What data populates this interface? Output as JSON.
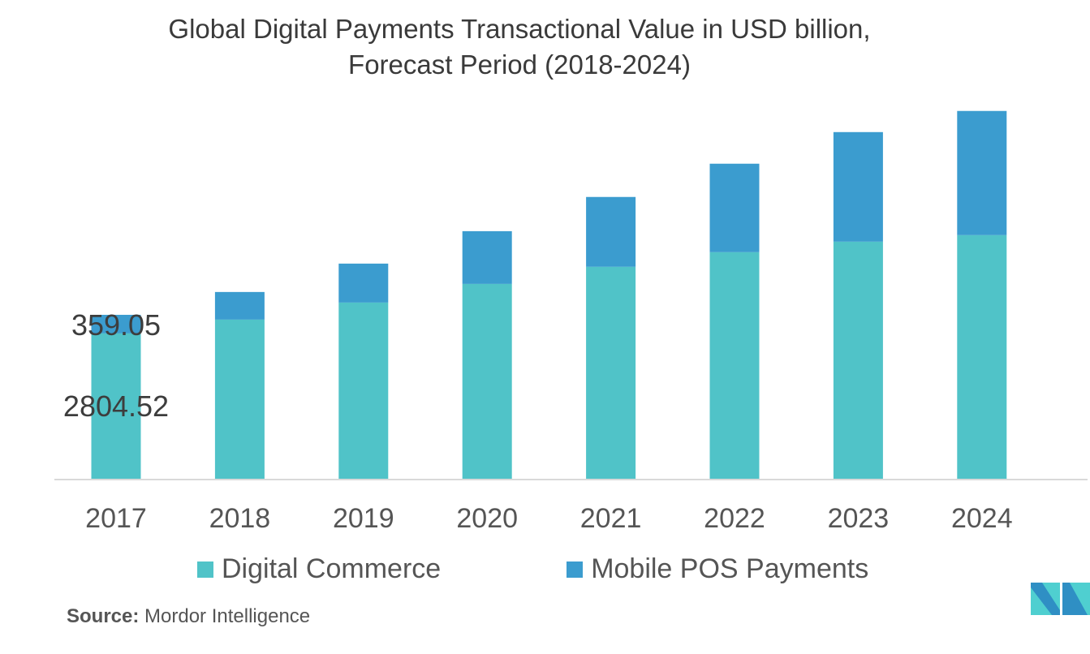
{
  "chart_data": {
    "type": "bar",
    "stacked": true,
    "title": "Global Digital Payments Transactional Value in USD billion,",
    "subtitle": "Forecast Period (2018-2024)",
    "categories": [
      "2017",
      "2018",
      "2019",
      "2020",
      "2021",
      "2022",
      "2023",
      "2024"
    ],
    "series": [
      {
        "name": "Digital Commerce",
        "color": "#50c3c8",
        "values": [
          2804.52,
          3071,
          3400,
          3760,
          4090,
          4372,
          4575,
          4701
        ]
      },
      {
        "name": "Mobile POS Payments",
        "color": "#3b9ccf",
        "values": [
          359.05,
          533,
          752,
          1018,
          1348,
          1708,
          2115,
          2397
        ]
      }
    ],
    "data_labels": [
      {
        "category": "2017",
        "series": "Mobile POS Payments",
        "text": "359.05"
      },
      {
        "category": "2017",
        "series": "Digital Commerce",
        "text": "2804.52"
      }
    ],
    "xlabel": "",
    "ylabel": "",
    "ylim": [
      0,
      7000
    ],
    "grid": false,
    "legend": "bottom"
  },
  "source": {
    "label": "Source:",
    "text": "Mordor Intelligence"
  },
  "logo": {
    "text": "Mordor Intelligence"
  }
}
